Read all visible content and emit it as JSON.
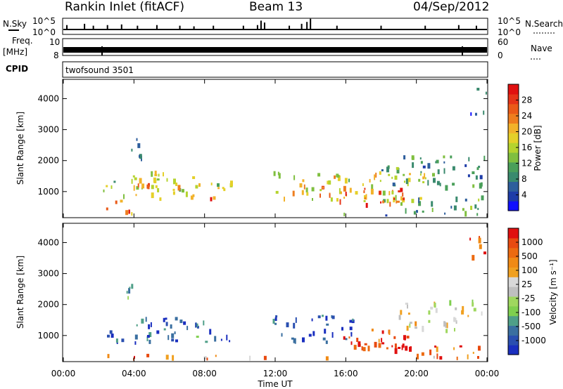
{
  "header": {
    "station": "Rankin Inlet (fitACF)",
    "beam": "Beam 13",
    "date": "04/Sep/2012"
  },
  "strip_labels": {
    "nsky": "N.Sky",
    "nsearch": "N.Search",
    "freq_top": "Freq.",
    "freq_unit": "[MHz]",
    "nave": "Nave",
    "cpid": "CPID",
    "cpid_value": "twofsound 3501"
  },
  "chart_data": [
    {
      "type": "line",
      "name": "noise-panel",
      "left_ticks": [
        "10^5",
        "10^0"
      ],
      "right_ticks": [
        "10^5",
        "10^0"
      ],
      "x_range_hours": [
        0,
        24
      ],
      "spikes": [
        {
          "t": 0.2,
          "h": 0.35
        },
        {
          "t": 1.2,
          "h": 0.45
        },
        {
          "t": 1.7,
          "h": 0.3
        },
        {
          "t": 2.5,
          "h": 0.35
        },
        {
          "t": 3.3,
          "h": 0.4
        },
        {
          "t": 4.2,
          "h": 0.3
        },
        {
          "t": 5.3,
          "h": 0.35
        },
        {
          "t": 6.6,
          "h": 0.3
        },
        {
          "t": 7.4,
          "h": 0.25
        },
        {
          "t": 8.5,
          "h": 0.3
        },
        {
          "t": 10.2,
          "h": 0.3
        },
        {
          "t": 11.0,
          "h": 0.35
        },
        {
          "t": 11.2,
          "h": 0.7
        },
        {
          "t": 11.4,
          "h": 0.55
        },
        {
          "t": 12.8,
          "h": 0.3
        },
        {
          "t": 13.5,
          "h": 0.45
        },
        {
          "t": 13.8,
          "h": 0.6
        },
        {
          "t": 14.0,
          "h": 0.85
        },
        {
          "t": 15.5,
          "h": 0.3
        },
        {
          "t": 18.0,
          "h": 0.3
        },
        {
          "t": 20.5,
          "h": 0.3
        },
        {
          "t": 22.4,
          "h": 0.35
        },
        {
          "t": 23.4,
          "h": 0.3
        }
      ]
    },
    {
      "type": "line",
      "name": "frequency-panel",
      "left_ticks": [
        "10",
        "8"
      ],
      "right_ticks": [
        "60",
        "0"
      ],
      "x_range_hours": [
        0,
        24
      ]
    },
    {
      "type": "heatmap",
      "name": "power",
      "ylabel": "Slant Range [km]",
      "yticks": [
        1000,
        2000,
        3000,
        4000
      ],
      "ylim": [
        180,
        4600
      ],
      "x_range_hours": [
        0,
        24
      ],
      "colorbar": {
        "label": "Power [dB]",
        "ticks": [
          "4",
          "8",
          "12",
          "16",
          "20",
          "24",
          "28"
        ],
        "colors": [
          "#1010ff",
          "#1e3ca8",
          "#2e5e9c",
          "#3a8a6e",
          "#4a9f5a",
          "#7fbf3f",
          "#b5d32e",
          "#e5d029",
          "#f2b22a",
          "#ee7e1f",
          "#ea5a18",
          "#e53318",
          "#e01010"
        ]
      },
      "regions": [
        {
          "t0": 2.2,
          "t1": 4.2,
          "r0": 250,
          "r1": 750,
          "v": 0.7
        },
        {
          "t0": 3.4,
          "t1": 4.1,
          "r0": 200,
          "r1": 450,
          "v": 0.95
        },
        {
          "t0": 2.0,
          "t1": 3.0,
          "r0": 1000,
          "r1": 1500,
          "v": 0.4
        },
        {
          "t0": 3.0,
          "t1": 7.0,
          "r0": 800,
          "r1": 1700,
          "v": 0.55
        },
        {
          "t0": 4.0,
          "t1": 6.5,
          "r0": 900,
          "r1": 1300,
          "v": 0.75
        },
        {
          "t0": 3.5,
          "t1": 4.5,
          "r0": 2000,
          "r1": 2800,
          "v": 0.3
        },
        {
          "t0": 7.2,
          "t1": 9.5,
          "r0": 800,
          "r1": 1500,
          "v": 0.5
        },
        {
          "t0": 8.0,
          "t1": 8.7,
          "r0": 800,
          "r1": 1200,
          "v": 0.8
        },
        {
          "t0": 11.8,
          "t1": 20.5,
          "r0": 700,
          "r1": 1700,
          "v": 0.55
        },
        {
          "t0": 14.5,
          "t1": 19.5,
          "r0": 700,
          "r1": 1200,
          "v": 0.8
        },
        {
          "t0": 17.0,
          "t1": 19.0,
          "r0": 600,
          "r1": 1000,
          "v": 0.9
        },
        {
          "t0": 19.0,
          "t1": 23.8,
          "r0": 300,
          "r1": 900,
          "v": 0.35
        },
        {
          "t0": 18.0,
          "t1": 24.0,
          "r0": 1200,
          "r1": 2200,
          "v": 0.3
        },
        {
          "t0": 23.0,
          "t1": 24.0,
          "r0": 3500,
          "r1": 4400,
          "v": 0.2
        },
        {
          "t0": 0.5,
          "t1": 24.0,
          "r0": 180,
          "r1": 350,
          "v": 0.25
        }
      ]
    },
    {
      "type": "heatmap",
      "name": "velocity",
      "ylabel": "Slant Range [km]",
      "yticks": [
        1000,
        2000,
        3000,
        4000
      ],
      "ylim": [
        180,
        4600
      ],
      "x_range_hours": [
        0,
        24
      ],
      "colorbar": {
        "label": "Velocity [m s⁻¹]",
        "ticks": [
          "1000",
          "500",
          "100",
          "25",
          "-25",
          "-100",
          "-500",
          "-1000"
        ],
        "colors": [
          "#1a2fbf",
          "#2a4fb0",
          "#3a6fa0",
          "#4f9f88",
          "#7fcf4f",
          "#9fd75f",
          "#bfbfbf",
          "#d8d8d8",
          "#f0a020",
          "#f08a15",
          "#ec6a10",
          "#e84a10",
          "#e01010"
        ]
      },
      "regions": [
        {
          "t0": 3.0,
          "t1": 7.0,
          "r0": 800,
          "r1": 1700,
          "v": 0.1
        },
        {
          "t0": 2.0,
          "t1": 3.0,
          "r0": 900,
          "r1": 1400,
          "v": 0.15
        },
        {
          "t0": 3.5,
          "t1": 4.5,
          "r0": 2000,
          "r1": 2700,
          "v": 0.3
        },
        {
          "t0": 7.2,
          "t1": 9.5,
          "r0": 800,
          "r1": 1500,
          "v": 0.15
        },
        {
          "t0": 11.8,
          "t1": 16.5,
          "r0": 800,
          "r1": 1700,
          "v": 0.1
        },
        {
          "t0": 15.5,
          "t1": 19.5,
          "r0": 600,
          "r1": 1300,
          "v": 0.85
        },
        {
          "t0": 17.0,
          "t1": 20.0,
          "r0": 500,
          "r1": 1000,
          "v": 0.95
        },
        {
          "t0": 19.0,
          "t1": 24.0,
          "r0": 1200,
          "r1": 2200,
          "v": 0.55
        },
        {
          "t0": 20.0,
          "t1": 23.5,
          "r0": 300,
          "r1": 800,
          "v": 0.8
        },
        {
          "t0": 1.0,
          "t1": 9.0,
          "r0": 180,
          "r1": 420,
          "v": 0.75
        },
        {
          "t0": 10.0,
          "t1": 24.0,
          "r0": 180,
          "r1": 350,
          "v": 0.7
        },
        {
          "t0": 23.0,
          "t1": 24.0,
          "r0": 3500,
          "r1": 4400,
          "v": 0.85
        }
      ]
    }
  ],
  "xaxis": {
    "ticks": [
      "00:00",
      "04:00",
      "08:00",
      "12:00",
      "16:00",
      "20:00",
      "00:00"
    ],
    "label": "Time UT"
  }
}
